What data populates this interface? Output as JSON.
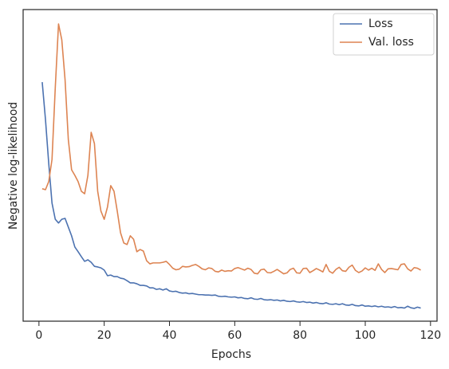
{
  "chart_data": {
    "type": "line",
    "xlabel": "Epochs",
    "ylabel": "Negative log-likelihood",
    "x": [
      1,
      2,
      3,
      4,
      5,
      6,
      7,
      8,
      9,
      10,
      11,
      12,
      13,
      14,
      15,
      16,
      17,
      18,
      19,
      20,
      21,
      22,
      23,
      24,
      25,
      26,
      27,
      28,
      29,
      30,
      31,
      32,
      33,
      34,
      35,
      36,
      37,
      38,
      39,
      40,
      41,
      42,
      43,
      44,
      45,
      46,
      47,
      48,
      49,
      50,
      51,
      52,
      53,
      54,
      55,
      56,
      57,
      58,
      59,
      60,
      61,
      62,
      63,
      64,
      65,
      66,
      67,
      68,
      69,
      70,
      71,
      72,
      73,
      74,
      75,
      76,
      77,
      78,
      79,
      80,
      81,
      82,
      83,
      84,
      85,
      86,
      87,
      88,
      89,
      90,
      91,
      92,
      93,
      94,
      95,
      96,
      97,
      98,
      99,
      100,
      101,
      102,
      103,
      104,
      105,
      106,
      107,
      108,
      109,
      110,
      111,
      112,
      113,
      114,
      115,
      116,
      117
    ],
    "series": [
      {
        "name": "Loss",
        "color": "#4c72b0",
        "values": [
          76.7,
          64.7,
          50.6,
          37.9,
          32.7,
          31.5,
          32.7,
          33.0,
          30.2,
          27.4,
          23.8,
          22.3,
          20.7,
          19.2,
          19.7,
          18.9,
          17.6,
          17.4,
          17.1,
          16.4,
          14.6,
          14.8,
          14.3,
          14.3,
          13.8,
          13.6,
          13.0,
          12.3,
          12.3,
          12.0,
          11.5,
          11.5,
          11.3,
          10.7,
          10.7,
          10.2,
          10.4,
          10.0,
          10.4,
          9.7,
          9.5,
          9.6,
          9.2,
          9.0,
          9.1,
          8.8,
          8.9,
          8.7,
          8.5,
          8.5,
          8.4,
          8.4,
          8.3,
          8.4,
          8.0,
          7.9,
          8.0,
          7.8,
          7.7,
          7.8,
          7.5,
          7.6,
          7.3,
          7.2,
          7.5,
          7.1,
          7.0,
          7.3,
          6.9,
          6.8,
          6.9,
          6.7,
          6.8,
          6.5,
          6.7,
          6.4,
          6.3,
          6.5,
          6.2,
          6.1,
          6.3,
          6.0,
          6.1,
          5.8,
          6.0,
          5.7,
          5.6,
          5.9,
          5.5,
          5.4,
          5.6,
          5.3,
          5.6,
          5.2,
          5.1,
          5.4,
          5.0,
          4.9,
          5.2,
          4.8,
          4.9,
          4.7,
          4.9,
          4.6,
          4.8,
          4.5,
          4.6,
          4.4,
          4.7,
          4.3,
          4.4,
          4.2,
          4.8,
          4.3,
          4.1,
          4.5,
          4.2
        ]
      },
      {
        "name": "Val. loss",
        "color": "#dd8452",
        "values": [
          42.5,
          42.2,
          44.8,
          51.9,
          74.9,
          95.4,
          90.3,
          77.5,
          58.3,
          48.6,
          46.8,
          44.8,
          41.7,
          40.9,
          46.8,
          60.6,
          57.0,
          41.7,
          35.3,
          32.7,
          36.6,
          43.5,
          41.7,
          35.3,
          28.4,
          25.1,
          24.6,
          27.4,
          26.3,
          22.3,
          23.0,
          22.5,
          19.4,
          18.4,
          18.7,
          18.7,
          18.7,
          18.9,
          19.2,
          18.2,
          17.0,
          16.5,
          16.7,
          17.6,
          17.4,
          17.5,
          17.9,
          18.2,
          17.6,
          16.8,
          16.5,
          17.1,
          16.9,
          16.0,
          15.8,
          16.4,
          16.0,
          16.2,
          16.1,
          16.9,
          17.2,
          16.8,
          16.4,
          17.0,
          16.6,
          15.4,
          15.2,
          16.5,
          16.7,
          15.6,
          15.5,
          16.0,
          16.6,
          15.9,
          15.2,
          15.5,
          16.6,
          17.0,
          15.5,
          15.4,
          16.9,
          17.0,
          15.6,
          16.2,
          16.9,
          16.4,
          15.8,
          18.2,
          16.0,
          15.4,
          16.6,
          17.3,
          16.2,
          16.0,
          17.3,
          18.0,
          16.3,
          15.6,
          16.1,
          17.1,
          16.4,
          17.0,
          16.3,
          18.4,
          16.6,
          15.6,
          16.8,
          16.9,
          16.7,
          16.5,
          18.2,
          18.4,
          16.8,
          16.1,
          17.2,
          17.0,
          16.4
        ]
      }
    ],
    "xlim": [
      -4.85,
      122.0
    ],
    "xticks": [
      0,
      20,
      40,
      60,
      80,
      100,
      120
    ],
    "ylim": [
      0,
      100
    ],
    "legend": "upper right"
  }
}
